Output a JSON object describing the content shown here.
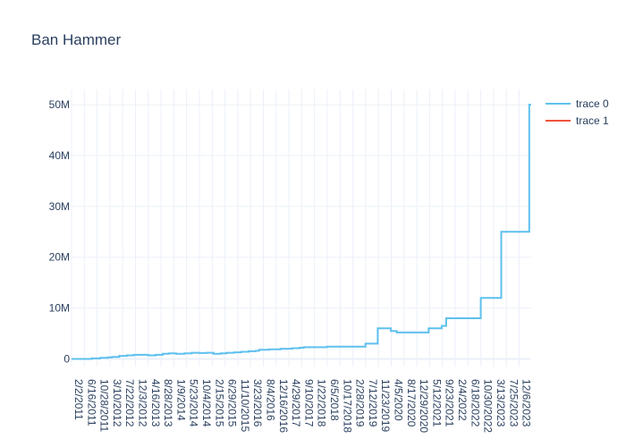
{
  "chart_data": {
    "type": "line",
    "title": "Ban Hammer",
    "xlabel": "",
    "ylabel": "",
    "x_scale": "date",
    "xlim": [
      "2011-02-02",
      "2024-04-10"
    ],
    "ylim": [
      -1500000,
      53000000
    ],
    "grid": true,
    "line_shape": "step",
    "legend_position": "top-right",
    "x_tick_labels": [
      "2/2/2011",
      "6/16/2011",
      "10/28/2011",
      "3/10/2012",
      "7/22/2012",
      "12/3/2012",
      "4/16/2013",
      "8/28/2013",
      "1/9/2014",
      "5/23/2014",
      "10/4/2014",
      "2/15/2015",
      "6/29/2015",
      "11/10/2015",
      "3/23/2016",
      "8/4/2016",
      "12/16/2016",
      "4/29/2017",
      "9/10/2017",
      "1/22/2018",
      "6/5/2018",
      "10/17/2018",
      "2/28/2019",
      "7/12/2019",
      "11/23/2019",
      "4/5/2020",
      "8/17/2020",
      "12/29/2020",
      "5/12/2021",
      "9/23/2021",
      "2/4/2022",
      "6/18/2022",
      "10/30/2022",
      "3/13/2023",
      "7/25/2023",
      "12/6/2023"
    ],
    "y_ticks": [
      0,
      10000000,
      20000000,
      30000000,
      40000000,
      50000000
    ],
    "y_tick_labels": [
      "0",
      "10M",
      "20M",
      "30M",
      "40M",
      "50M"
    ],
    "series": [
      {
        "name": "trace 0",
        "color": "#5ec0ee",
        "x": [
          "2011-02-02",
          "2011-09-01",
          "2011-12-01",
          "2012-02-15",
          "2012-04-01",
          "2012-06-15",
          "2012-09-01",
          "2012-11-15",
          "2013-02-01",
          "2013-04-15",
          "2013-07-01",
          "2013-09-15",
          "2013-11-15",
          "2014-02-01",
          "2014-05-01",
          "2014-07-15",
          "2014-10-01",
          "2014-12-15",
          "2015-03-01",
          "2015-05-15",
          "2015-07-15",
          "2015-10-01",
          "2015-12-15",
          "2016-03-01",
          "2016-05-15",
          "2016-06-20",
          "2016-10-01",
          "2017-02-01",
          "2017-06-01",
          "2017-08-15",
          "2017-10-01",
          "2018-03-01",
          "2018-06-01",
          "2018-09-01",
          "2018-12-01",
          "2019-03-01",
          "2019-07-10",
          "2019-11-15",
          "2020-04-01",
          "2020-06-01",
          "2020-09-01",
          "2020-12-20",
          "2021-05-01",
          "2021-09-15",
          "2021-11-01",
          "2022-10-30",
          "2023-06-01",
          "2024-03-20",
          "2024-04-10"
        ],
        "y": [
          0,
          100000,
          200000,
          300000,
          400000,
          600000,
          700000,
          800000,
          800000,
          700000,
          800000,
          1000000,
          1100000,
          1000000,
          1100000,
          1200000,
          1150000,
          1200000,
          1000000,
          1100000,
          1200000,
          1300000,
          1400000,
          1500000,
          1600000,
          1800000,
          1900000,
          2000000,
          2100000,
          2200000,
          2300000,
          2300000,
          2400000,
          2400000,
          2400000,
          2400000,
          3000000,
          6000000,
          5500000,
          5200000,
          5200000,
          5200000,
          6000000,
          6500000,
          8000000,
          12000000,
          25000000,
          50000000,
          50000000
        ]
      },
      {
        "name": "trace 1",
        "color": "#f0533c",
        "x": [],
        "y": []
      }
    ]
  }
}
